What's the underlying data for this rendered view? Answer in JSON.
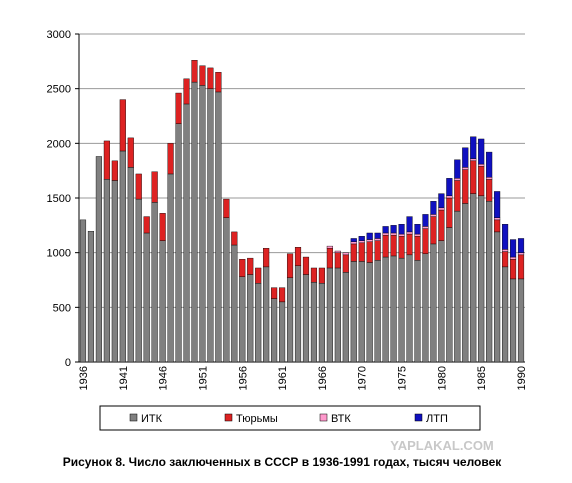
{
  "chart_data": {
    "type": "stacked-bar",
    "title": "Рисунок 8. Число заключенных в СССР в 1936-1991 годах, тысяч человек",
    "watermark": "YAPLAKAL.COM",
    "categories": [
      "1936",
      null,
      null,
      null,
      null,
      "1941",
      null,
      null,
      null,
      null,
      "1946",
      null,
      null,
      null,
      null,
      "1951",
      null,
      null,
      null,
      null,
      "1956",
      null,
      null,
      null,
      null,
      "1961",
      null,
      null,
      null,
      null,
      "1966",
      null,
      null,
      null,
      null,
      "1970",
      null,
      null,
      null,
      null,
      "1975",
      null,
      null,
      null,
      null,
      "1980",
      null,
      null,
      null,
      null,
      "1985",
      null,
      null,
      null,
      null,
      "1990"
    ],
    "series": [
      {
        "name": "ИТК",
        "color": "#808080",
        "values": [
          1300,
          1196,
          1880,
          1672,
          1660,
          1930,
          1780,
          1490,
          1180,
          1460,
          1110,
          1720,
          2180,
          2360,
          2560,
          2530,
          2500,
          2470,
          1320,
          1070,
          780,
          800,
          720,
          870,
          580,
          550,
          770,
          880,
          800,
          730,
          720,
          860,
          860,
          820,
          920,
          920,
          910,
          930,
          960,
          970,
          950,
          980,
          930,
          990,
          1080,
          1110,
          1230,
          1380,
          1450,
          1540,
          1520,
          1470,
          1190,
          870,
          760,
          760
        ]
      },
      {
        "name": "Тюрьмы",
        "color": "#dd2222",
        "values": [
          0,
          0,
          0,
          350,
          180,
          470,
          270,
          230,
          150,
          280,
          250,
          280,
          280,
          230,
          200,
          180,
          190,
          180,
          170,
          120,
          160,
          150,
          140,
          170,
          100,
          130,
          220,
          170,
          160,
          130,
          140,
          180,
          140,
          160,
          160,
          170,
          190,
          180,
          200,
          190,
          200,
          190,
          220,
          230,
          250,
          280,
          270,
          280,
          310,
          300,
          270,
          200,
          110,
          140,
          180,
          220
        ]
      },
      {
        "name": "ВТК",
        "color": "#ff99cc",
        "values": [
          0,
          0,
          0,
          0,
          0,
          0,
          0,
          0,
          0,
          0,
          0,
          0,
          0,
          0,
          0,
          0,
          0,
          0,
          0,
          0,
          0,
          0,
          0,
          0,
          0,
          0,
          0,
          0,
          0,
          0,
          0,
          20,
          15,
          20,
          20,
          20,
          20,
          20,
          20,
          20,
          20,
          20,
          20,
          20,
          20,
          20,
          20,
          20,
          20,
          20,
          20,
          20,
          20,
          20,
          20,
          20
        ]
      },
      {
        "name": "ЛТП",
        "color": "#1010c0",
        "values": [
          0,
          0,
          0,
          0,
          0,
          0,
          0,
          0,
          0,
          0,
          0,
          0,
          0,
          0,
          0,
          0,
          0,
          0,
          0,
          0,
          0,
          0,
          0,
          0,
          0,
          0,
          0,
          0,
          0,
          0,
          0,
          0,
          0,
          0,
          30,
          40,
          60,
          50,
          60,
          70,
          90,
          140,
          90,
          110,
          120,
          130,
          160,
          170,
          180,
          200,
          230,
          230,
          240,
          230,
          160,
          130
        ]
      }
    ],
    "ylim": [
      0,
      3000
    ],
    "yticks": [
      0,
      500,
      1000,
      1500,
      2000,
      2500,
      3000
    ],
    "grid": true
  }
}
